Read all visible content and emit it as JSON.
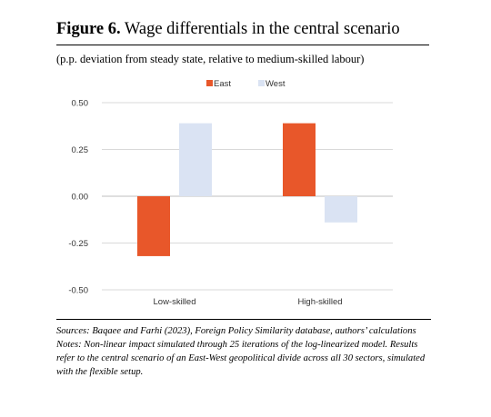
{
  "figure": {
    "label": "Figure 6.",
    "title": "Wage differentials in the central scenario",
    "subtitle": "(p.p. deviation from steady state, relative to medium-skilled labour)",
    "sources": "Sources: Baqaee and Farhi (2023), Foreign Policy Similarity database, authors’ calculations",
    "notes": "Notes: Non-linear impact simulated through 25 iterations of the log-linearized model. Results refer to the central scenario of an East-West geopolitical divide across all 30 sectors, simulated with the flexible setup."
  },
  "chart_data": {
    "type": "bar",
    "categories": [
      "Low-skilled",
      "High-skilled"
    ],
    "series": [
      {
        "name": "East",
        "color": "#E8572A",
        "values": [
          -0.32,
          0.39
        ]
      },
      {
        "name": "West",
        "color": "#DAE3F3",
        "values": [
          0.39,
          -0.14
        ]
      }
    ],
    "ylim": [
      -0.5,
      0.5
    ],
    "yticks": [
      0.5,
      0.25,
      0.0,
      -0.25,
      -0.5
    ],
    "ytick_labels": [
      "0.50",
      "0.25",
      "0.00",
      "-0.25",
      "-0.50"
    ],
    "grid": true,
    "legend": "top-center",
    "xlabel": "",
    "ylabel": ""
  }
}
